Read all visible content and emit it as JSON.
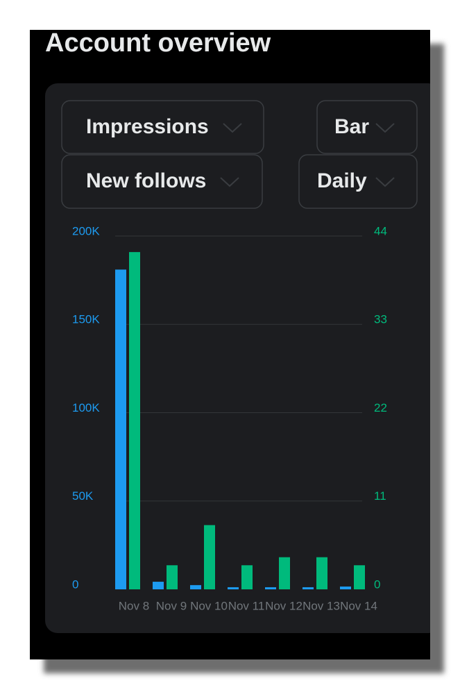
{
  "header": {
    "title": "Account overview"
  },
  "controls": {
    "chart_style": "Bar",
    "interval": "Daily"
  },
  "chart_data": {
    "type": "bar",
    "categories": [
      "Nov 8",
      "Nov 9",
      "Nov 10",
      "Nov 11",
      "Nov 12",
      "Nov 13",
      "Nov 14"
    ],
    "series": [
      {
        "name": "Impressions",
        "color": "#1d9bf0",
        "axis": "y",
        "values": [
          181000,
          4300,
          2400,
          1200,
          1200,
          1200,
          1600
        ]
      },
      {
        "name": "New follows",
        "color": "#00ba7c",
        "axis": "y2",
        "values": [
          42,
          3,
          8,
          3,
          4,
          4,
          3
        ]
      }
    ],
    "ylim": [
      0,
      200000
    ],
    "yticks": [
      0,
      {
        "value": 50000,
        "label": "50K"
      },
      {
        "value": 100000,
        "label": "100K"
      },
      {
        "value": 150000,
        "label": "150K"
      },
      {
        "value": 200000,
        "label": "200K"
      }
    ],
    "y2lim": [
      0,
      44
    ],
    "y2ticks": [
      0,
      11,
      22,
      33,
      44
    ],
    "grid": true
  }
}
